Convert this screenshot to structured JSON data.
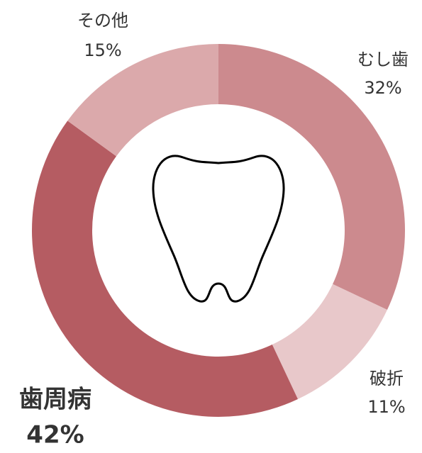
{
  "chart_data": {
    "type": "donut",
    "categories": [
      "むし歯",
      "破折",
      "歯周病",
      "その他"
    ],
    "values": [
      32,
      11,
      42,
      15
    ],
    "value_labels": [
      "32%",
      "11%",
      "42%",
      "15%"
    ],
    "colors": [
      "#cc8a8e",
      "#e8c8ca",
      "#b55c62",
      "#dba9ab"
    ]
  }
}
